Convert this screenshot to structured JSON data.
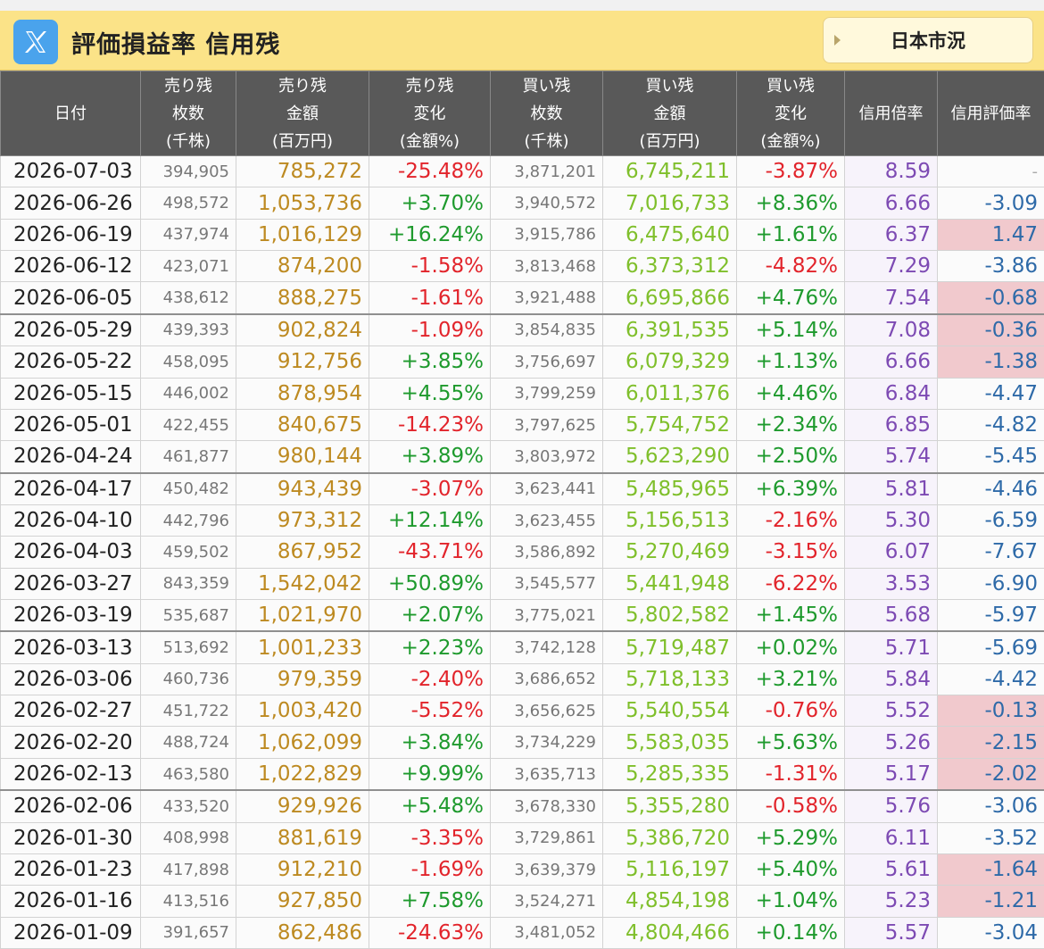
{
  "header": {
    "title": "評価損益率 信用残",
    "market_button": "日本市況"
  },
  "columns": [
    [
      "日付"
    ],
    [
      "売り残",
      "枚数",
      "(千株)"
    ],
    [
      "売り残",
      "金額",
      "(百万円)"
    ],
    [
      "売り残",
      "変化",
      "(金額%)"
    ],
    [
      "買い残",
      "枚数",
      "(千株)"
    ],
    [
      "買い残",
      "金額",
      "(百万円)"
    ],
    [
      "買い残",
      "変化",
      "(金額%)"
    ],
    [
      "信用倍率"
    ],
    [
      "信用評価率"
    ]
  ],
  "rows": [
    [
      "2026-07-03",
      "394,905",
      "785,272",
      "-25.48%",
      "3,871,201",
      "6,745,211",
      "-3.87%",
      "8.59",
      "-"
    ],
    [
      "2026-06-26",
      "498,572",
      "1,053,736",
      "+3.70%",
      "3,940,572",
      "7,016,733",
      "+8.36%",
      "6.66",
      "-3.09"
    ],
    [
      "2026-06-19",
      "437,974",
      "1,016,129",
      "+16.24%",
      "3,915,786",
      "6,475,640",
      "+1.61%",
      "6.37",
      "1.47"
    ],
    [
      "2026-06-12",
      "423,071",
      "874,200",
      "-1.58%",
      "3,813,468",
      "6,373,312",
      "-4.82%",
      "7.29",
      "-3.86"
    ],
    [
      "2026-06-05",
      "438,612",
      "888,275",
      "-1.61%",
      "3,921,488",
      "6,695,866",
      "+4.76%",
      "7.54",
      "-0.68"
    ],
    [
      "2026-05-29",
      "439,393",
      "902,824",
      "-1.09%",
      "3,854,835",
      "6,391,535",
      "+5.14%",
      "7.08",
      "-0.36"
    ],
    [
      "2026-05-22",
      "458,095",
      "912,756",
      "+3.85%",
      "3,756,697",
      "6,079,329",
      "+1.13%",
      "6.66",
      "-1.38"
    ],
    [
      "2026-05-15",
      "446,002",
      "878,954",
      "+4.55%",
      "3,799,259",
      "6,011,376",
      "+4.46%",
      "6.84",
      "-4.47"
    ],
    [
      "2026-05-01",
      "422,455",
      "840,675",
      "-14.23%",
      "3,797,625",
      "5,754,752",
      "+2.34%",
      "6.85",
      "-4.82"
    ],
    [
      "2026-04-24",
      "461,877",
      "980,144",
      "+3.89%",
      "3,803,972",
      "5,623,290",
      "+2.50%",
      "5.74",
      "-5.45"
    ],
    [
      "2026-04-17",
      "450,482",
      "943,439",
      "-3.07%",
      "3,623,441",
      "5,485,965",
      "+6.39%",
      "5.81",
      "-4.46"
    ],
    [
      "2026-04-10",
      "442,796",
      "973,312",
      "+12.14%",
      "3,623,455",
      "5,156,513",
      "-2.16%",
      "5.30",
      "-6.59"
    ],
    [
      "2026-04-03",
      "459,502",
      "867,952",
      "-43.71%",
      "3,586,892",
      "5,270,469",
      "-3.15%",
      "6.07",
      "-7.67"
    ],
    [
      "2026-03-27",
      "843,359",
      "1,542,042",
      "+50.89%",
      "3,545,577",
      "5,441,948",
      "-6.22%",
      "3.53",
      "-6.90"
    ],
    [
      "2026-03-19",
      "535,687",
      "1,021,970",
      "+2.07%",
      "3,775,021",
      "5,802,582",
      "+1.45%",
      "5.68",
      "-5.97"
    ],
    [
      "2026-03-13",
      "513,692",
      "1,001,233",
      "+2.23%",
      "3,742,128",
      "5,719,487",
      "+0.02%",
      "5.71",
      "-5.69"
    ],
    [
      "2026-03-06",
      "460,736",
      "979,359",
      "-2.40%",
      "3,686,652",
      "5,718,133",
      "+3.21%",
      "5.84",
      "-4.42"
    ],
    [
      "2026-02-27",
      "451,722",
      "1,003,420",
      "-5.52%",
      "3,656,625",
      "5,540,554",
      "-0.76%",
      "5.52",
      "-0.13"
    ],
    [
      "2026-02-20",
      "488,724",
      "1,062,099",
      "+3.84%",
      "3,734,229",
      "5,583,035",
      "+5.63%",
      "5.26",
      "-2.15"
    ],
    [
      "2026-02-13",
      "463,580",
      "1,022,829",
      "+9.99%",
      "3,635,713",
      "5,285,335",
      "-1.31%",
      "5.17",
      "-2.02"
    ],
    [
      "2026-02-06",
      "433,520",
      "929,926",
      "+5.48%",
      "3,678,330",
      "5,355,280",
      "-0.58%",
      "5.76",
      "-3.06"
    ],
    [
      "2026-01-30",
      "408,998",
      "881,619",
      "-3.35%",
      "3,729,861",
      "5,386,720",
      "+5.29%",
      "6.11",
      "-3.52"
    ],
    [
      "2026-01-23",
      "417,898",
      "912,210",
      "-1.69%",
      "3,639,379",
      "5,116,197",
      "+5.40%",
      "5.61",
      "-1.64"
    ],
    [
      "2026-01-16",
      "413,516",
      "927,850",
      "+7.58%",
      "3,524,271",
      "4,854,198",
      "+1.04%",
      "5.23",
      "-1.21"
    ],
    [
      "2026-01-09",
      "391,657",
      "862,486",
      "-24.63%",
      "3,481,052",
      "4,804,466",
      "+0.14%",
      "5.57",
      "-3.04"
    ]
  ],
  "highlight_eval_rows": [
    2,
    4,
    5,
    6,
    17,
    18,
    19,
    22,
    23
  ],
  "month_separator_rows": [
    5,
    10,
    15,
    20
  ],
  "colors": {
    "header_bg": "#fbe388",
    "table_header_bg": "#595959",
    "positive": "#1e9a2d",
    "negative": "#e2242b",
    "sell_amount": "#bd8a21",
    "buy_amount": "#7fbf2b",
    "ratio": "#7d4ab3",
    "eval": "#2e6aa8",
    "eval_highlight_bg": "#f1c9cd"
  }
}
